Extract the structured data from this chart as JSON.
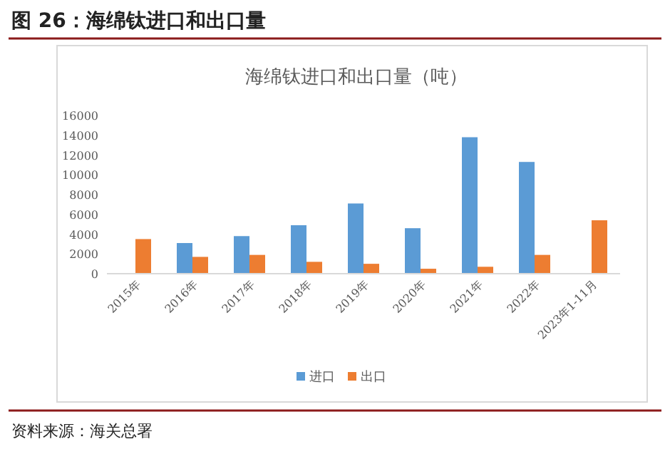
{
  "chart_data": {
    "type": "bar",
    "title": "图 26：海绵钛进口和出口量",
    "subtitle": "海绵钛进口和出口量（吨）",
    "categories": [
      "2015年",
      "2016年",
      "2017年",
      "2018年",
      "2019年",
      "2020年",
      "2021年",
      "2022年",
      "2023年1-11月"
    ],
    "series": [
      {
        "name": "进口",
        "color": "#5b9bd5",
        "values": [
          null,
          3100,
          3800,
          4900,
          7100,
          4600,
          13800,
          11300,
          null
        ]
      },
      {
        "name": "出口",
        "color": "#ed7d31",
        "values": [
          3500,
          1700,
          1900,
          1200,
          1000,
          500,
          700,
          1900,
          5400
        ]
      }
    ],
    "ylim": [
      0,
      16000
    ],
    "yticks": [
      0,
      2000,
      4000,
      6000,
      8000,
      10000,
      12000,
      14000,
      16000
    ],
    "legend": "bottom",
    "grid": false,
    "annotations": [
      "资料来源：海关总署"
    ]
  }
}
